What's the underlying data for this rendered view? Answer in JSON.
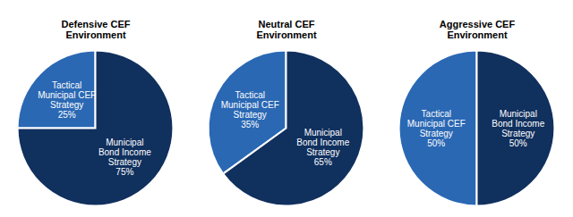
{
  "chart_data": [
    {
      "type": "pie",
      "title": "Defensive CEF Environment",
      "categories": [
        "Tactical Municipal CEF Strategy",
        "Municipal Bond Income Strategy"
      ],
      "values": [
        25,
        75
      ],
      "value_labels": [
        "25%",
        "75%"
      ],
      "colors": [
        "#2a68b4",
        "#10305e"
      ],
      "data_labels": true
    },
    {
      "type": "pie",
      "title": "Neutral CEF Environment",
      "categories": [
        "Tactical Municipal CEF Strategy",
        "Municipal Bond Income Strategy"
      ],
      "values": [
        35,
        65
      ],
      "value_labels": [
        "35%",
        "65%"
      ],
      "colors": [
        "#2a68b4",
        "#10305e"
      ],
      "data_labels": true
    },
    {
      "type": "pie",
      "title": "Aggressive CEF Environment",
      "categories": [
        "Tactical Municipal CEF Strategy",
        "Municipal Bond Income Strategy"
      ],
      "values": [
        50,
        50
      ],
      "value_labels": [
        "50%",
        "50%"
      ],
      "colors": [
        "#2a68b4",
        "#10305e"
      ],
      "data_labels": true
    }
  ]
}
